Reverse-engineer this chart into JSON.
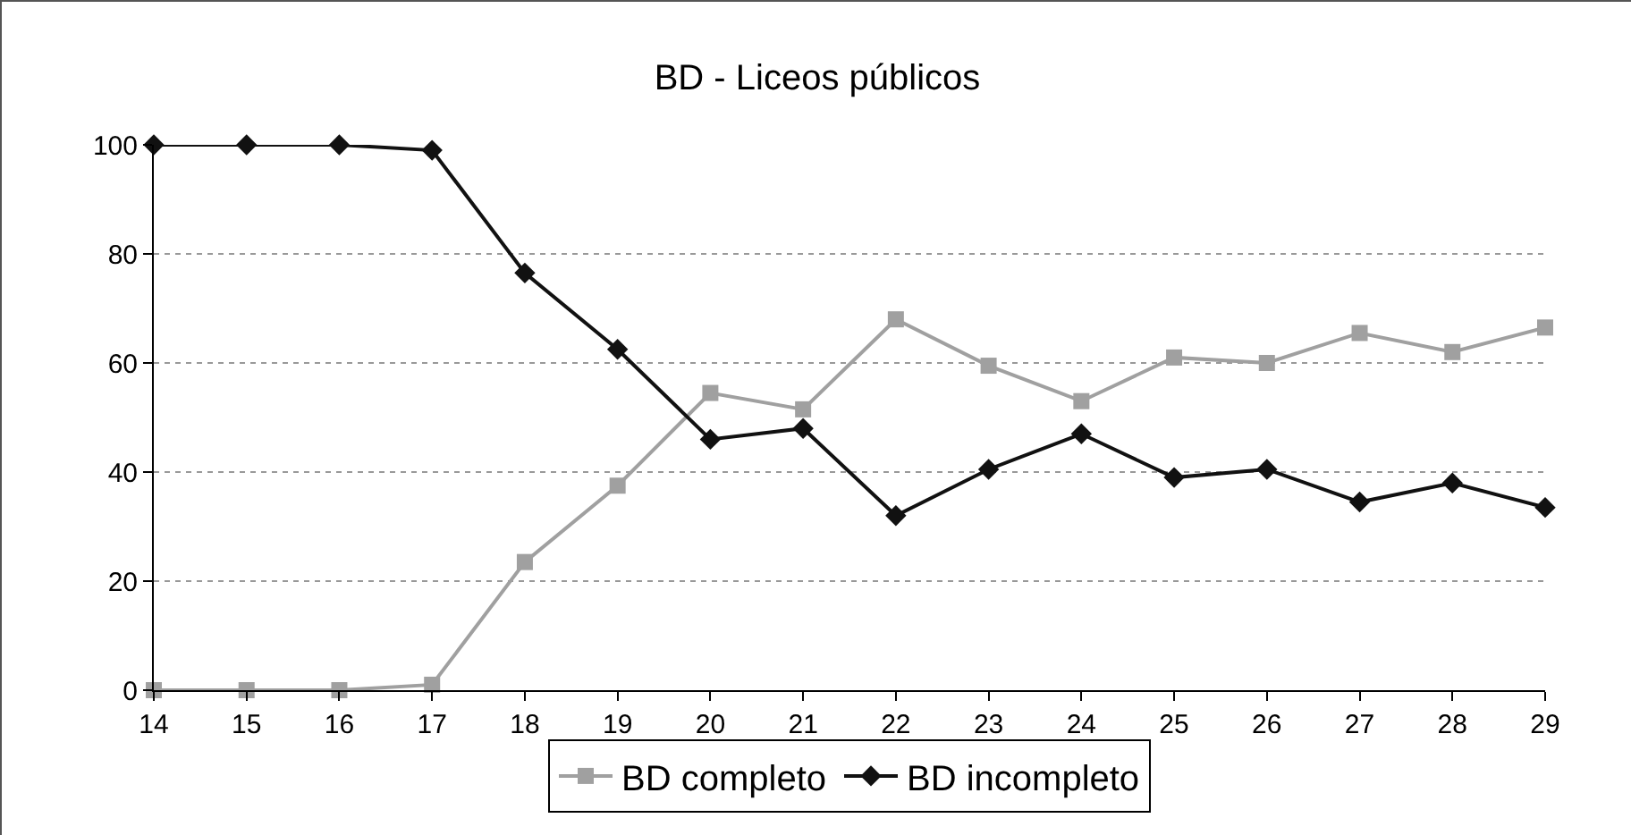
{
  "chart_data": {
    "type": "line",
    "title": "BD - Liceos públicos",
    "x": [
      14,
      15,
      16,
      17,
      18,
      19,
      20,
      21,
      22,
      23,
      24,
      25,
      26,
      27,
      28,
      29
    ],
    "series": [
      {
        "name": "BD completo",
        "color": "#a0a0a0",
        "marker": "square",
        "values": [
          0,
          0,
          0,
          1,
          23.5,
          37.5,
          54.5,
          51.5,
          68,
          59.5,
          53,
          61,
          60,
          65.5,
          62,
          66.5
        ]
      },
      {
        "name": "BD incompleto",
        "color": "#111111",
        "marker": "diamond",
        "values": [
          100,
          100,
          100,
          99,
          76.5,
          62.5,
          46,
          48,
          32,
          40.5,
          47,
          39,
          40.5,
          34.5,
          38,
          33.5
        ]
      }
    ],
    "xlim": [
      14,
      29
    ],
    "xticks": [
      14,
      15,
      16,
      17,
      18,
      19,
      20,
      21,
      22,
      23,
      24,
      25,
      26,
      27,
      28,
      29
    ],
    "ylim": [
      0,
      100
    ],
    "yticks": [
      0,
      20,
      40,
      60,
      80,
      100
    ],
    "grid": "y",
    "legend": "bottom",
    "line_style": "solid"
  }
}
